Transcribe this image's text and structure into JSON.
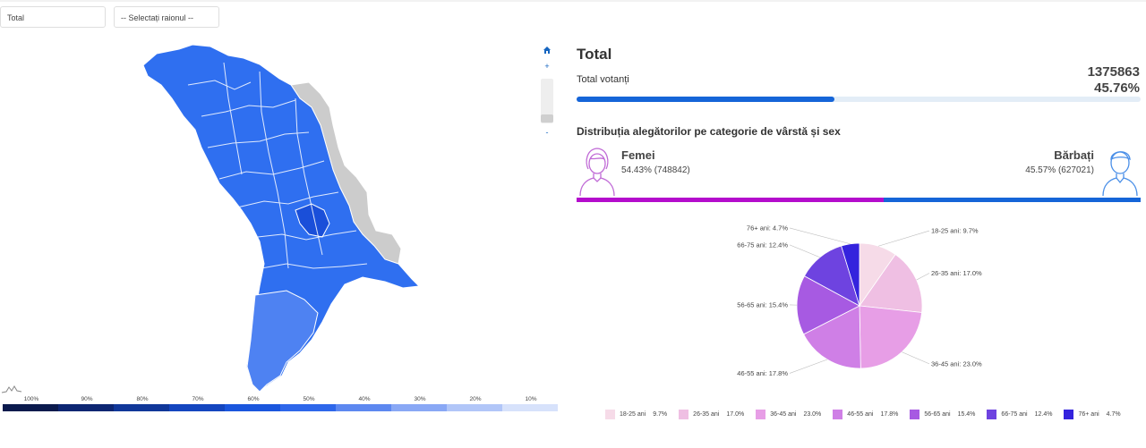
{
  "filters": {
    "total_select": "Total",
    "raion_select": "-- Selectați raionul --"
  },
  "colors": {
    "accent": "#1565d8",
    "women": "#b40ccc",
    "men": "#1565d8",
    "map_no_data": "#cccccc"
  },
  "map": {
    "legend_labels": [
      "100%",
      "90%",
      "80%",
      "70%",
      "60%",
      "50%",
      "40%",
      "30%",
      "20%",
      "10%"
    ],
    "legend_colors": [
      "#0b1a4d",
      "#0d2672",
      "#103799",
      "#1446bf",
      "#1a56dd",
      "#2e67ea",
      "#5d88f0",
      "#89a8f5",
      "#b1c6f8",
      "#d7e2fb"
    ],
    "zoom_in_label": "+",
    "zoom_out_label": "-",
    "home_icon": "home-icon"
  },
  "summary": {
    "title": "Total",
    "votanti_label": "Total votanți",
    "votanti_count": "1375863",
    "votanti_pct_text": "45.76%",
    "votanti_pct": 45.76
  },
  "distribution": {
    "title": "Distribuția alegătorilor pe categorie de vârstă și sex",
    "women_label": "Femei",
    "women_value": "54.43% (748842)",
    "women_pct": 54.43,
    "men_label": "Bărbați",
    "men_value": "45.57% (627021)",
    "men_pct": 45.57
  },
  "chart_data": {
    "type": "pie",
    "title": "",
    "slices": [
      {
        "label": "18-25 ani",
        "value": 9.7,
        "color": "#f6dbe8"
      },
      {
        "label": "26-35 ani",
        "value": 17.0,
        "color": "#efbfe3"
      },
      {
        "label": "36-45 ani",
        "value": 23.0,
        "color": "#e79ee6"
      },
      {
        "label": "46-55 ani",
        "value": 17.8,
        "color": "#cf7fe6"
      },
      {
        "label": "56-65 ani",
        "value": 15.4,
        "color": "#a75ae2"
      },
      {
        "label": "66-75 ani",
        "value": 12.4,
        "color": "#6e43e0"
      },
      {
        "label": "76+ ani",
        "value": 4.7,
        "color": "#3423dd"
      }
    ],
    "slice_label_texts": [
      "18-25 ani: 9.7%",
      "26-35 ani: 17.0%",
      "36-45 ani: 23.0%",
      "46-55 ani: 17.8%",
      "56-65 ani: 15.4%",
      "66-75 ani: 12.4%",
      "76+ ani: 4.7%"
    ],
    "legend_values": [
      "9.7%",
      "17.0%",
      "23.0%",
      "17.8%",
      "15.4%",
      "12.4%",
      "4.7%"
    ],
    "legend": "bottom"
  }
}
